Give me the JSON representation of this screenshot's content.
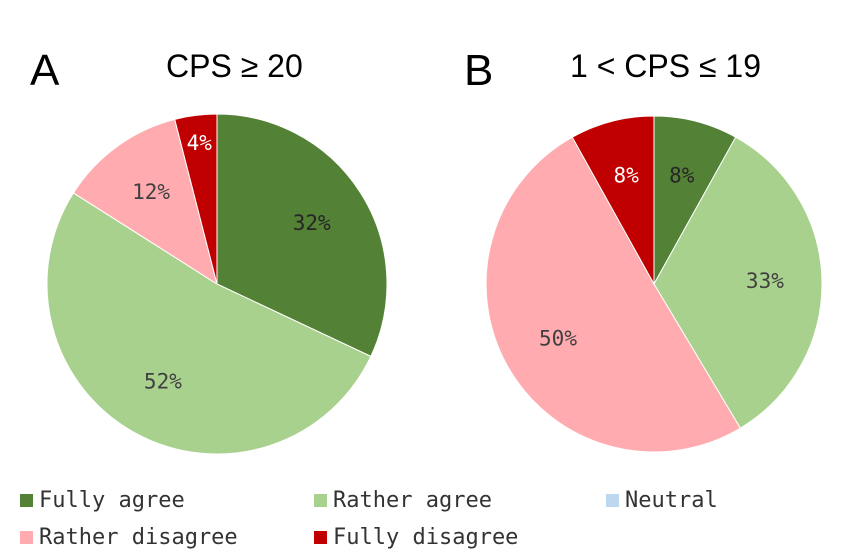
{
  "chart_data": [
    {
      "type": "pie",
      "panel": "A",
      "title": "CPS ≥ 20",
      "slices": [
        {
          "category": "Fully agree",
          "value": 32,
          "label": "32%"
        },
        {
          "category": "Rather agree",
          "value": 52,
          "label": "52%"
        },
        {
          "category": "Rather disagree",
          "value": 12,
          "label": "12%"
        },
        {
          "category": "Fully disagree",
          "value": 4,
          "label": "4%"
        }
      ]
    },
    {
      "type": "pie",
      "panel": "B",
      "title": "1 < CPS ≤ 19",
      "slices": [
        {
          "category": "Fully agree",
          "value": 8,
          "label": "8%"
        },
        {
          "category": "Rather agree",
          "value": 33,
          "label": "33%"
        },
        {
          "category": "Rather disagree",
          "value": 50,
          "label": "50%"
        },
        {
          "category": "Fully disagree",
          "value": 8,
          "label": "8%"
        }
      ]
    }
  ],
  "legend": [
    {
      "label": "Fully agree",
      "color": "#538135"
    },
    {
      "label": "Rather agree",
      "color": "#a9d18e"
    },
    {
      "label": "Neutral",
      "color": "#bdd7ee"
    },
    {
      "label": "Rather disagree",
      "color": "#ffabaf"
    },
    {
      "label": "Fully disagree",
      "color": "#c00000"
    }
  ],
  "colors": {
    "Fully agree": "#538135",
    "Rather agree": "#a9d18e",
    "Neutral": "#bdd7ee",
    "Rather disagree": "#ffabaf",
    "Fully disagree": "#c00000"
  },
  "label_colors": {
    "Fully agree": "#262626",
    "Rather agree": "#404040",
    "Rather disagree": "#404040",
    "Fully disagree": "#ffffff"
  }
}
